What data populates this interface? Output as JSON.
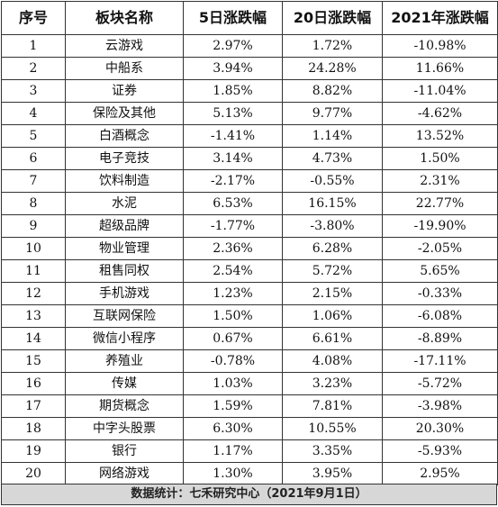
{
  "table": {
    "headers": [
      "序号",
      "板块名称",
      "5日涨跌幅",
      "20日涨跌幅",
      "2021年涨跌幅"
    ],
    "rows": [
      [
        "1",
        "云游戏",
        "2.97%",
        "1.72%",
        "-10.98%"
      ],
      [
        "2",
        "中船系",
        "3.94%",
        "24.28%",
        "11.66%"
      ],
      [
        "3",
        "证券",
        "1.85%",
        "8.82%",
        "-11.04%"
      ],
      [
        "4",
        "保险及其他",
        "5.13%",
        "9.77%",
        "-4.62%"
      ],
      [
        "5",
        "白酒概念",
        "-1.41%",
        "1.14%",
        "13.52%"
      ],
      [
        "6",
        "电子竞技",
        "3.14%",
        "4.73%",
        "1.50%"
      ],
      [
        "7",
        "饮料制造",
        "-2.17%",
        "-0.55%",
        "2.31%"
      ],
      [
        "8",
        "水泥",
        "6.53%",
        "16.15%",
        "22.77%"
      ],
      [
        "9",
        "超级品牌",
        "-1.77%",
        "-3.80%",
        "-19.90%"
      ],
      [
        "10",
        "物业管理",
        "2.36%",
        "6.28%",
        "-2.05%"
      ],
      [
        "11",
        "租售同权",
        "2.54%",
        "5.72%",
        "5.65%"
      ],
      [
        "12",
        "手机游戏",
        "1.23%",
        "2.15%",
        "-0.33%"
      ],
      [
        "13",
        "互联网保险",
        "1.50%",
        "1.06%",
        "-6.08%"
      ],
      [
        "14",
        "微信小程序",
        "0.67%",
        "6.61%",
        "-8.89%"
      ],
      [
        "15",
        "养殖业",
        "-0.78%",
        "4.08%",
        "-17.11%"
      ],
      [
        "16",
        "传媒",
        "1.03%",
        "3.23%",
        "-5.72%"
      ],
      [
        "17",
        "期货概念",
        "1.59%",
        "7.81%",
        "-3.98%"
      ],
      [
        "18",
        "中字头股票",
        "6.30%",
        "10.55%",
        "20.30%"
      ],
      [
        "19",
        "银行",
        "1.17%",
        "3.35%",
        "-5.93%"
      ],
      [
        "20",
        "网络游戏",
        "1.30%",
        "3.95%",
        "2.95%"
      ]
    ]
  },
  "footer": {
    "text": "数据统计：七禾研究中心（2021年9月1日）"
  },
  "colors": {
    "border": "#333333",
    "footer_bg": "#d7d7d7"
  }
}
